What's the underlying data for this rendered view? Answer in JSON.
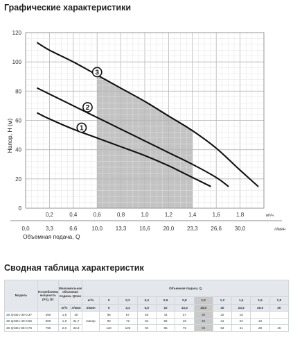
{
  "page": {
    "chart_heading": "Графические характеристики",
    "table_heading": "Сводная таблица характеристик"
  },
  "chart_data": {
    "type": "line",
    "ylabel": "Напор, H (м)",
    "xlabel": "Объемная подача, Q",
    "x_unit_top": "м³/ч",
    "x_unit_bottom": "л/мин",
    "xlim": [
      0,
      2.0
    ],
    "ylim": [
      0,
      120
    ],
    "y_ticks": [
      "0",
      "20",
      "40",
      "60",
      "80",
      "100",
      "120"
    ],
    "x_ticks_m3h": [
      "0,2",
      "0,4",
      "0,6",
      "0,8",
      "1,0",
      "1,2",
      "1,4",
      "1,6",
      "1,8"
    ],
    "x_ticks_m3h_pos": [
      0.2,
      0.4,
      0.6,
      0.8,
      1.0,
      1.2,
      1.4,
      1.6,
      1.8
    ],
    "x_ticks_lmin": [
      "0,0",
      "3,3",
      "6,6",
      "10,0",
      "13,3",
      "16,6",
      "20,0",
      "23,3",
      "26,6",
      "30,0"
    ],
    "x_ticks_lmin_pos": [
      0,
      0.2,
      0.4,
      0.6,
      0.8,
      1.0,
      1.2,
      1.4,
      1.6,
      1.8
    ],
    "grid": true,
    "shaded_region": {
      "x": [
        0.6,
        1.4
      ]
    },
    "series": [
      {
        "name": "1",
        "x": [
          0.1,
          0.2,
          0.4,
          0.6,
          0.8,
          1.0,
          1.2,
          1.4,
          1.55
        ],
        "y": [
          65,
          61,
          54,
          48,
          42,
          36,
          29,
          21,
          15
        ]
      },
      {
        "name": "2",
        "x": [
          0.1,
          0.2,
          0.4,
          0.6,
          0.8,
          1.0,
          1.2,
          1.4,
          1.6,
          1.7
        ],
        "y": [
          82,
          78,
          70,
          62,
          54,
          46,
          38,
          30,
          21,
          15
        ]
      },
      {
        "name": "3",
        "x": [
          0.1,
          0.2,
          0.4,
          0.6,
          0.8,
          1.0,
          1.2,
          1.4,
          1.6,
          1.8,
          1.95
        ],
        "y": [
          113,
          108,
          100,
          91,
          82,
          73,
          63,
          53,
          41,
          26,
          15
        ]
      }
    ],
    "curve_labels": [
      {
        "text": "1",
        "x": 0.47,
        "y": 55
      },
      {
        "text": "2",
        "x": 0.52,
        "y": 69
      },
      {
        "text": "3",
        "x": 0.6,
        "y": 93
      }
    ]
  },
  "table": {
    "h_model": "Модель",
    "h_power": "Потребляемая мощность (P1), Вт",
    "h_flow_max": "Максимальная объемная подача, Qmax",
    "h_flow_group": "Объемная подача, Q",
    "h_napor": "Напор",
    "unit_m3h": "м³/ч",
    "unit_lmin": "л/мин",
    "unit_m3h_short": "м³/ч",
    "unit_lmin_short": "л/мин",
    "q_m3h": [
      "0",
      "0,2",
      "0,4",
      "0,6",
      "0,8",
      "1,0",
      "1,2",
      "1,4",
      "1,6",
      "1,8"
    ],
    "q_lmin": [
      "0",
      "3,3",
      "6,6",
      "10",
      "13,3",
      "16,6",
      "20",
      "23,3",
      "26,6",
      "30"
    ],
    "rows": [
      {
        "model": "3S QGD1-30-0,37",
        "power": "450",
        "qmax_m3h": "1,8",
        "qmax_lmin": "30",
        "h": [
          "66",
          "57",
          "50",
          "44",
          "37",
          "30",
          "22",
          "15",
          "",
          ""
        ]
      },
      {
        "model": "3S QGD1-40-0,55",
        "power": "500",
        "qmax_m3h": "1,9",
        "qmax_lmin": "31,7",
        "h": [
          "90",
          "72",
          "64",
          "56",
          "48",
          "40",
          "31",
          "22",
          "13",
          ""
        ]
      },
      {
        "model": "3S QGD1-65-0,75",
        "power": "750",
        "qmax_m3h": "2,0",
        "qmax_lmin": "33,3",
        "h": [
          "110",
          "103",
          "94",
          "85",
          "75",
          "65",
          "53",
          "41",
          "28",
          "15"
        ]
      }
    ],
    "highlight_index": 5
  }
}
